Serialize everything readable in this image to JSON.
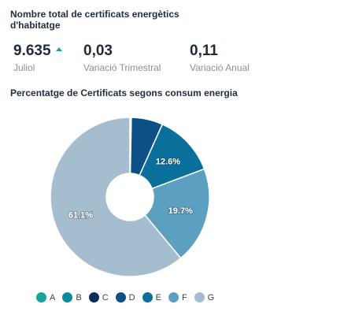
{
  "header": {
    "title": "Nombre total de certificats energètics d'habitatge"
  },
  "kpis": [
    {
      "value": "9.635",
      "label": "Juliol",
      "trend": "up-triangle-icon"
    },
    {
      "value": "0,03",
      "label": "Variació Trimestral"
    },
    {
      "value": "0,11",
      "label": "Variació Anual"
    }
  ],
  "colors": {
    "A": "#1aa39c",
    "B": "#0c8a9a",
    "C": "#0e2d57",
    "D": "#0d4f87",
    "E": "#0a6f9b",
    "F": "#5b9fc1",
    "G": "#a5becf",
    "trend": "#1aa39c"
  },
  "chart_data": {
    "type": "pie",
    "title": "Percentatge de Certificats segons consum energia",
    "legend_position": "bottom",
    "categories": [
      "A",
      "B",
      "C",
      "D",
      "E",
      "F",
      "G"
    ],
    "values": [
      0.1,
      0.1,
      0.1,
      6.4,
      12.6,
      19.7,
      61.1
    ],
    "data_labels": [
      "",
      "",
      "",
      "",
      "12.6%",
      "19.7%",
      "61.1%"
    ]
  }
}
